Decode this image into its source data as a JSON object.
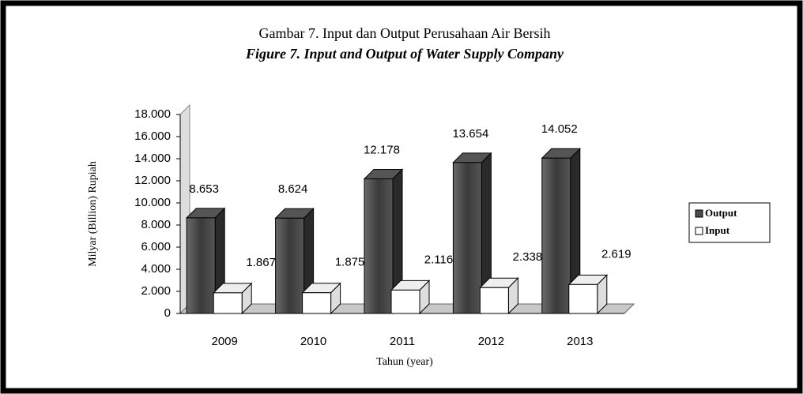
{
  "chart_data": {
    "type": "bar3d",
    "title": "Gambar 7. Input dan Output Perusahaan Air Bersih",
    "subtitle": "Figure 7. Input and Output of Water Supply Company",
    "y_label": "Milyar (Billion) Rupiah",
    "x_label": "Tahun (year)",
    "categories": [
      "2009",
      "2010",
      "2011",
      "2012",
      "2013"
    ],
    "series": [
      {
        "name": "Output",
        "color": "#4a4a4a",
        "values": [
          8653,
          8624,
          12178,
          13654,
          14052
        ],
        "value_labels": [
          "8.653",
          "8.624",
          "12.178",
          "13.654",
          "14.052"
        ]
      },
      {
        "name": "Input",
        "color": "#ffffff",
        "values": [
          1867,
          1875,
          2116,
          2338,
          2619
        ],
        "value_labels": [
          "1.867",
          "1.875",
          "2.116",
          "2.338",
          "2.619"
        ]
      }
    ],
    "ylim": [
      0,
      18000
    ],
    "yticks": [
      0,
      {
        "value": 2000,
        "label": "2.000"
      },
      {
        "value": 4000,
        "label": "4.000"
      },
      {
        "value": 6000,
        "label": "6.000"
      },
      {
        "value": 8000,
        "label": "8.000"
      },
      {
        "value": 10000,
        "label": "10.000"
      },
      {
        "value": 12000,
        "label": "12.000"
      },
      {
        "value": 14000,
        "label": "14.000"
      },
      {
        "value": 16000,
        "label": "16.000"
      },
      {
        "value": 18000,
        "label": "18.000"
      }
    ],
    "legend": "right"
  }
}
